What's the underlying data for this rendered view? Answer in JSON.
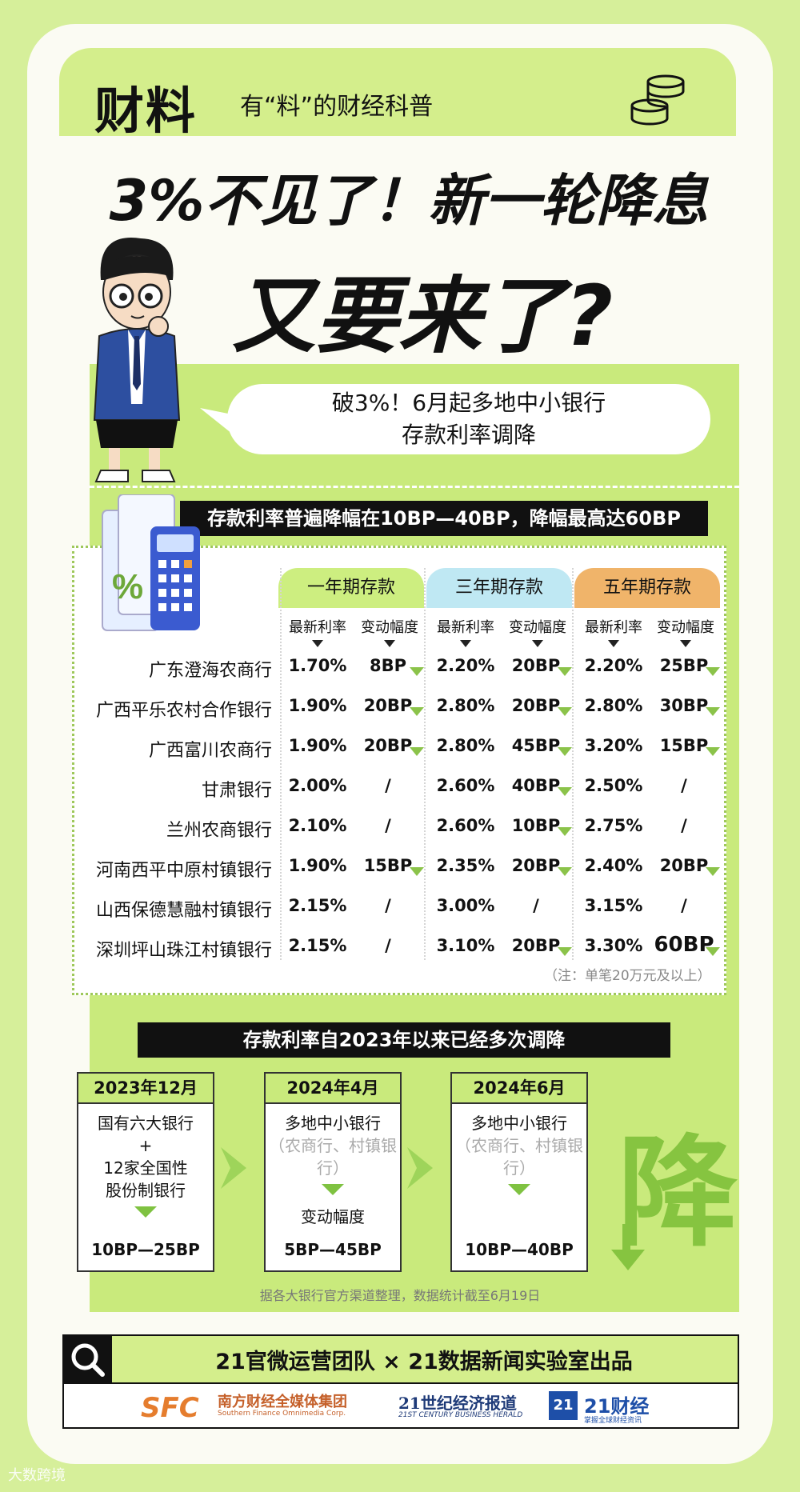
{
  "header": {
    "logo": "财料",
    "tagline": "有“料”的财经科普"
  },
  "title": {
    "line1": "3%不见了！新一轮降息",
    "line2": "又要来了?"
  },
  "bubble": {
    "line1": "破3%！6月起多地中小银行",
    "line2": "存款利率调降"
  },
  "section1": {
    "banner": "存款利率普遍降幅在10BP—40BP，降幅最高达60BP",
    "columns": [
      "一年期存款",
      "三年期存款",
      "五年期存款"
    ],
    "subheads": [
      "最新利率",
      "变动幅度"
    ],
    "rows": [
      {
        "bank": "广东澄海农商行",
        "r1": "1.70%",
        "c1": "8BP",
        "r3": "2.20%",
        "c3": "20BP",
        "r5": "2.20%",
        "c5": "25BP"
      },
      {
        "bank": "广西平乐农村合作银行",
        "r1": "1.90%",
        "c1": "20BP",
        "r3": "2.80%",
        "c3": "20BP",
        "r5": "2.80%",
        "c5": "30BP"
      },
      {
        "bank": "广西富川农商行",
        "r1": "1.90%",
        "c1": "20BP",
        "r3": "2.80%",
        "c3": "45BP",
        "r5": "3.20%",
        "c5": "15BP"
      },
      {
        "bank": "甘肃银行",
        "r1": "2.00%",
        "c1": "/",
        "r3": "2.60%",
        "c3": "40BP",
        "r5": "2.50%",
        "c5": "/"
      },
      {
        "bank": "兰州农商银行",
        "r1": "2.10%",
        "c1": "/",
        "r3": "2.60%",
        "c3": "10BP",
        "r5": "2.75%",
        "c5": "/"
      },
      {
        "bank": "河南西平中原村镇银行",
        "r1": "1.90%",
        "c1": "15BP",
        "r3": "2.35%",
        "c3": "20BP",
        "r5": "2.40%",
        "c5": "20BP"
      },
      {
        "bank": "山西保德慧融村镇银行",
        "r1": "2.15%",
        "c1": "/",
        "r3": "3.00%",
        "c3": "/",
        "r5": "3.15%",
        "c5": "/"
      },
      {
        "bank": "深圳坪山珠江村镇银行",
        "r1": "2.15%",
        "c1": "/",
        "r3": "3.10%",
        "c3": "20BP",
        "r5": "3.30%",
        "c5": "60BP"
      }
    ],
    "note": "（注：单笔20万元及以上）"
  },
  "section2": {
    "banner": "存款利率自2023年以来已经多次调降",
    "timeline": [
      {
        "date": "2023年12月",
        "lines": [
          "国有六大银行",
          "+",
          "12家全国性",
          "股份制银行"
        ],
        "sub": "",
        "label": "",
        "range": "10BP—25BP"
      },
      {
        "date": "2024年4月",
        "lines": [
          "多地中小银行"
        ],
        "sub": "（农商行、村镇银行）",
        "label": "变动幅度",
        "range": "5BP—45BP"
      },
      {
        "date": "2024年6月",
        "lines": [
          "多地中小银行"
        ],
        "sub": "（农商行、村镇银行）",
        "label": "",
        "range": "10BP—40BP"
      }
    ],
    "big_char": "降",
    "source": "据各大银行官方渠道整理，数据统计截至6月19日"
  },
  "footer": {
    "title": "21官微运营团队 × 21数据新闻实验室出品",
    "sfc": "SFC",
    "sfc_name": "南方财经全媒体集团",
    "sfc_en": "Southern Finance Omnimedia Corp.",
    "c21_name": "21世纪经济报道",
    "c21_en": "21ST CENTURY BUSINESS HERALD",
    "c21c_logo": "21",
    "c21c_name": "21财经",
    "c21c_sub": "掌握全球财经资讯"
  },
  "watermark": "大数跨境",
  "colors": {
    "lime": "#c9ea7c",
    "col1": "#cdee80",
    "col3": "#bfe8f3",
    "col5": "#f0b46a",
    "green_arrow": "#86c440"
  }
}
